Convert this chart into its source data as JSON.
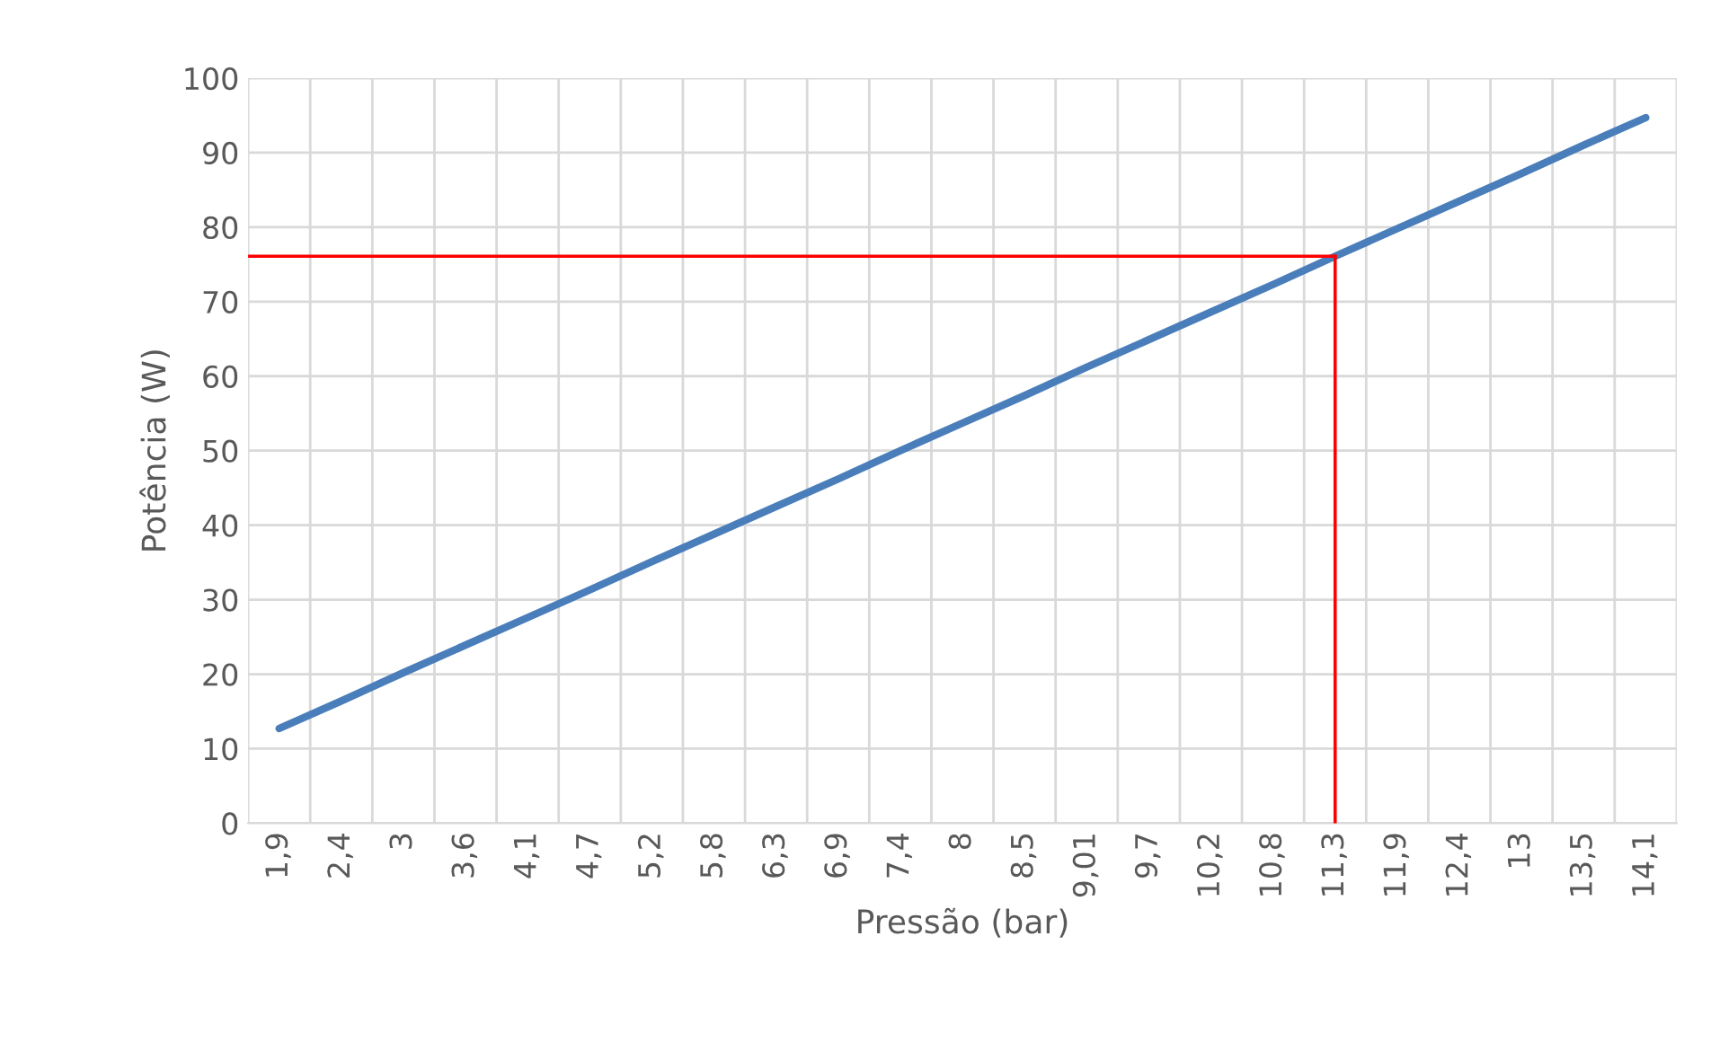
{
  "chart_data": {
    "type": "line",
    "xlabel": "Pressão (bar)",
    "ylabel": "Potência (W)",
    "categories": [
      "1,9",
      "2,4",
      "3",
      "3,6",
      "4,1",
      "4,7",
      "5,2",
      "5,8",
      "6,3",
      "6,9",
      "7,4",
      "8",
      "8,5",
      "9,01",
      "9,7",
      "10,2",
      "10,8",
      "11,3",
      "11,9",
      "12,4",
      "13",
      "13,5",
      "14,1"
    ],
    "series": [
      {
        "color": "#4a7ebb",
        "values": [
          12.7,
          16.4,
          20.2,
          23.9,
          27.6,
          31.3,
          35.1,
          38.8,
          42.5,
          46.2,
          50.0,
          53.7,
          57.4,
          61.2,
          64.9,
          68.6,
          72.3,
          76.1,
          79.8,
          83.5,
          87.2,
          91.0,
          94.7
        ]
      }
    ],
    "ylim": [
      0,
      100
    ],
    "yticks": [
      0,
      10,
      20,
      30,
      40,
      50,
      60,
      70,
      80,
      90,
      100
    ],
    "grid": true,
    "legend": false,
    "ref_lines": [
      {
        "axis": "y",
        "value": 76.1,
        "color": "#ff0000"
      },
      {
        "axis": "x",
        "value": "11,3",
        "color": "#ff0000"
      }
    ]
  }
}
